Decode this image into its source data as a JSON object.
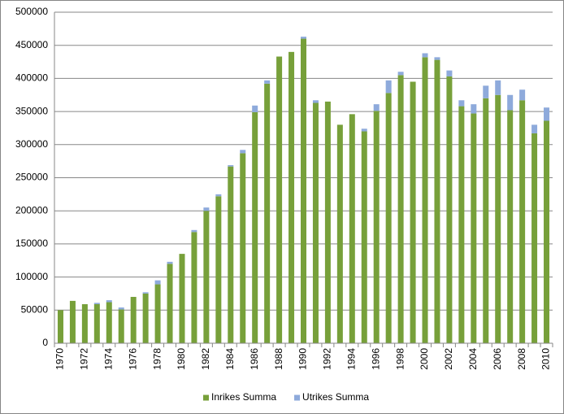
{
  "chart_data": {
    "type": "stacked-bar",
    "categories": [
      "1970",
      null,
      "1972",
      null,
      "1974",
      null,
      "1976",
      null,
      "1978",
      null,
      "1980",
      null,
      "1982",
      null,
      "1984",
      null,
      "1986",
      null,
      "1988",
      null,
      "1990",
      null,
      "1992",
      null,
      "1994",
      null,
      "1996",
      null,
      "1998",
      null,
      "2000",
      null,
      "2002",
      null,
      "2004",
      null,
      "2006",
      null,
      "2008",
      null,
      "2010"
    ],
    "series": [
      {
        "name": "Inrikes Summa",
        "color": "#77a03a",
        "values": [
          50000,
          64000,
          59000,
          59000,
          62000,
          51000,
          70000,
          75000,
          89000,
          120000,
          135000,
          168000,
          200000,
          222000,
          267000,
          287000,
          349000,
          392000,
          433000,
          440000,
          460000,
          363000,
          365000,
          330000,
          346000,
          320000,
          351000,
          378000,
          405000,
          395000,
          432000,
          428000,
          403000,
          358000,
          347000,
          370000,
          375000,
          352000,
          367000,
          317000,
          336000
        ]
      },
      {
        "name": "Utrikes Summa",
        "color": "#8eaadb",
        "values": [
          0,
          0,
          0,
          2000,
          3000,
          3000,
          0,
          2000,
          6000,
          3000,
          0,
          3000,
          5000,
          3000,
          2000,
          5000,
          10000,
          5000,
          0,
          0,
          3000,
          4000,
          0,
          0,
          0,
          4000,
          10000,
          19000,
          5000,
          0,
          6000,
          4000,
          9000,
          9000,
          14000,
          19000,
          22000,
          23000,
          16000,
          13000,
          20000
        ]
      }
    ],
    "ylim": [
      0,
      500000
    ],
    "yticks": [
      0,
      50000,
      100000,
      150000,
      200000,
      250000,
      300000,
      350000,
      400000,
      450000,
      500000
    ],
    "grid": true,
    "legend": "bottom"
  }
}
